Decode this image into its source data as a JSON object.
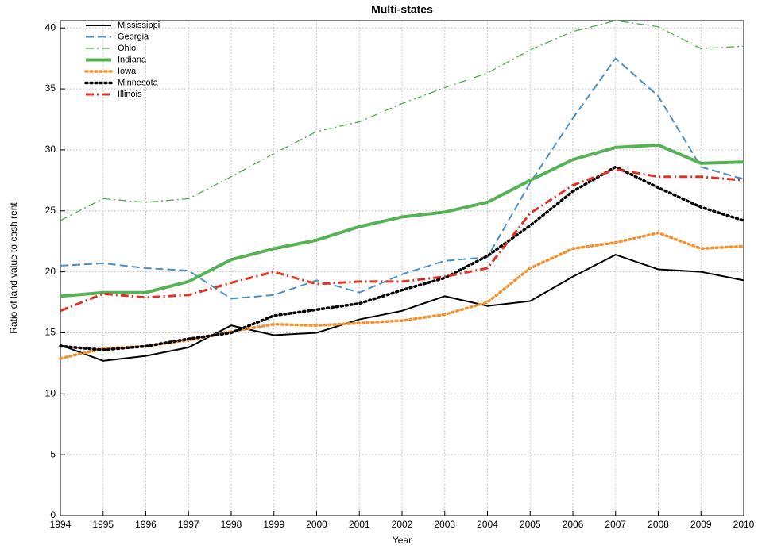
{
  "chart_data": {
    "type": "line",
    "title": "Multi-states",
    "x_label": "Year",
    "y_label": "Ratio of land value to cash rent",
    "x": [
      1994,
      1995,
      1996,
      1997,
      1998,
      1999,
      2000,
      2001,
      2002,
      2003,
      2004,
      2005,
      2006,
      2007,
      2008,
      2009,
      2010
    ],
    "xlim": [
      1994,
      2010
    ],
    "xticks": [
      1994,
      1995,
      1996,
      1997,
      1998,
      1999,
      2000,
      2001,
      2002,
      2003,
      2004,
      2005,
      2006,
      2007,
      2008,
      2009,
      2010
    ],
    "ylim": [
      0,
      40.6
    ],
    "yticks": [
      0,
      5,
      10,
      15,
      20,
      25,
      30,
      35,
      40
    ],
    "grid": true,
    "legend": "upper left",
    "series": [
      {
        "name": "Mississippi",
        "color": "#000000",
        "style": "solid",
        "width": 2,
        "values": [
          14.0,
          12.7,
          13.1,
          13.8,
          15.6,
          14.8,
          15.0,
          16.1,
          16.8,
          18.0,
          17.2,
          17.6,
          19.6,
          21.4,
          20.2,
          20.0,
          19.3
        ]
      },
      {
        "name": "Georgia",
        "color": "#4a8fc8",
        "style": "dashed",
        "width": 2,
        "values": [
          20.5,
          20.7,
          20.3,
          20.1,
          17.8,
          18.1,
          19.3,
          18.3,
          19.8,
          20.9,
          21.2,
          27.3,
          32.6,
          37.5,
          34.4,
          28.6,
          27.6
        ]
      },
      {
        "name": "Ohio",
        "color": "#4caf4c",
        "style": "dashdot",
        "width": 1.3,
        "values": [
          24.2,
          26.0,
          25.7,
          26.0,
          27.8,
          29.7,
          31.5,
          32.3,
          33.8,
          35.1,
          36.3,
          38.2,
          39.7,
          40.6,
          40.1,
          38.3,
          38.5
        ]
      },
      {
        "name": "Indiana",
        "color": "#55b255",
        "style": "solid",
        "width": 4,
        "values": [
          18.0,
          18.3,
          18.3,
          19.2,
          21.0,
          21.9,
          22.6,
          23.7,
          24.5,
          24.9,
          25.7,
          27.5,
          29.2,
          30.2,
          30.4,
          28.9,
          29.0
        ]
      },
      {
        "name": "Iowa",
        "color": "#f29330",
        "style": "dotted",
        "width": 3.5,
        "values": [
          12.9,
          13.7,
          13.9,
          14.4,
          15.1,
          15.7,
          15.6,
          15.8,
          16.0,
          16.5,
          17.5,
          20.3,
          21.9,
          22.4,
          23.2,
          21.9,
          22.1
        ]
      },
      {
        "name": "Minnesota",
        "color": "#000000",
        "style": "dotted",
        "width": 3.5,
        "values": [
          13.9,
          13.6,
          13.9,
          14.5,
          15.0,
          16.4,
          16.9,
          17.4,
          18.5,
          19.5,
          21.3,
          23.8,
          26.6,
          28.6,
          26.9,
          25.3,
          24.2
        ]
      },
      {
        "name": "Illinois",
        "color": "#e03323",
        "style": "dashdot",
        "width": 3,
        "values": [
          16.8,
          18.2,
          17.9,
          18.1,
          19.1,
          20.0,
          19.0,
          19.2,
          19.2,
          19.6,
          20.3,
          24.8,
          27.1,
          28.4,
          27.8,
          27.8,
          27.5
        ]
      }
    ]
  }
}
